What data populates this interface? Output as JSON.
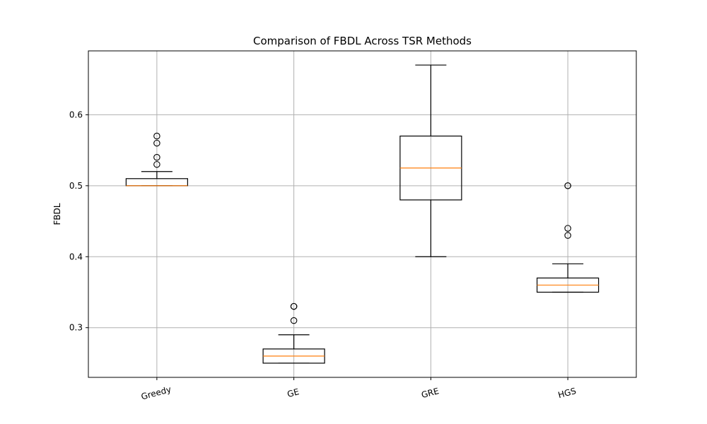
{
  "chart_data": {
    "type": "boxplot",
    "title": "Comparison of FBDL Across TSR Methods",
    "xlabel": "",
    "ylabel": "FBDL",
    "ylim": [
      0.23,
      0.69
    ],
    "yticks": [
      0.3,
      0.4,
      0.5,
      0.6
    ],
    "ytick_labels": [
      "0.3",
      "0.4",
      "0.5",
      "0.6"
    ],
    "grid": true,
    "colors": {
      "box": "#000000",
      "median": "#ff7f0e",
      "grid": "#b0b0b0"
    },
    "categories": [
      "Greedy",
      "GE",
      "GRE",
      "HGS"
    ],
    "boxes": [
      {
        "whisker_low": 0.5,
        "q1": 0.5,
        "median": 0.5,
        "q3": 0.51,
        "whisker_high": 0.52,
        "outliers": [
          0.53,
          0.54,
          0.56,
          0.57
        ]
      },
      {
        "whisker_low": 0.25,
        "q1": 0.25,
        "median": 0.26,
        "q3": 0.27,
        "whisker_high": 0.29,
        "outliers": [
          0.31,
          0.33,
          0.33
        ]
      },
      {
        "whisker_low": 0.4,
        "q1": 0.48,
        "median": 0.525,
        "q3": 0.57,
        "whisker_high": 0.67,
        "outliers": []
      },
      {
        "whisker_low": 0.35,
        "q1": 0.35,
        "median": 0.36,
        "q3": 0.37,
        "whisker_high": 0.39,
        "outliers": [
          0.43,
          0.44,
          0.5,
          0.5
        ]
      }
    ]
  }
}
